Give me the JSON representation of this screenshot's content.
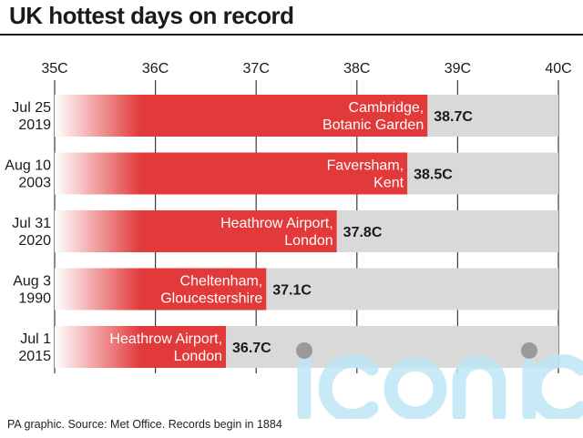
{
  "title": "UK hottest days on record",
  "source": "PA graphic. Source: Met Office. Records begin in 1884",
  "watermark": "iconic",
  "colors": {
    "bar": "#e2393a",
    "track": "#d9d9d9",
    "text": "#1a1a1a",
    "watermark": "#bfe6f5"
  },
  "chart_data": {
    "type": "bar",
    "orientation": "horizontal",
    "title": "UK hottest days on record",
    "unit": "C",
    "xlim": [
      35,
      40
    ],
    "xticks": [
      "35C",
      "36C",
      "37C",
      "38C",
      "39C",
      "40C"
    ],
    "grid": true,
    "categories": [
      "Jul 25 2019",
      "Aug 10 2003",
      "Jul 31 2020",
      "Aug 3 1990",
      "Jul 1 2015"
    ],
    "date_lines": [
      [
        "Jul 25",
        "2019"
      ],
      [
        "Aug 10",
        "2003"
      ],
      [
        "Jul 31",
        "2020"
      ],
      [
        "Aug 3",
        "1990"
      ],
      [
        "Jul 1",
        "2015"
      ]
    ],
    "values": [
      38.7,
      38.5,
      37.8,
      37.1,
      36.7
    ],
    "value_labels": [
      "38.7C",
      "38.5C",
      "37.8C",
      "37.1C",
      "36.7C"
    ],
    "locations": [
      [
        "Cambridge,",
        "Botanic Garden"
      ],
      [
        "Faversham,",
        "Kent"
      ],
      [
        "Heathrow Airport,",
        "London"
      ],
      [
        "Cheltenham,",
        "Gloucestershire"
      ],
      [
        "Heathrow Airport,",
        "London"
      ]
    ]
  }
}
